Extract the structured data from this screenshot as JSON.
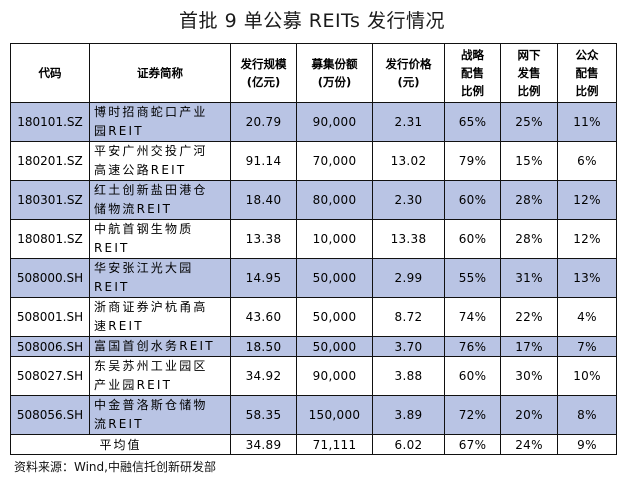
{
  "title": "首批 9 单公募 REITs 发行情况",
  "headers": [
    [
      "代码"
    ],
    [
      "证券简称"
    ],
    [
      "发行规模",
      "(亿元)"
    ],
    [
      "募集份额",
      "(万份)"
    ],
    [
      "发行价格",
      "(元)"
    ],
    [
      "战略",
      "配售",
      "比例"
    ],
    [
      "网下",
      "发售",
      "比例"
    ],
    [
      "公众",
      "配售",
      "比例"
    ]
  ],
  "rows": [
    {
      "code": "180101.SZ",
      "name": [
        "博时招商蛇口产业",
        "园REIT"
      ],
      "scale": "20.79",
      "shares": "90,000",
      "price": "2.31",
      "strategic": "65%",
      "offline": "25%",
      "public": "11%"
    },
    {
      "code": "180201.SZ",
      "name": [
        "平安广州交投广河",
        "高速公路REIT"
      ],
      "scale": "91.14",
      "shares": "70,000",
      "price": "13.02",
      "strategic": "79%",
      "offline": "15%",
      "public": "6%"
    },
    {
      "code": "180301.SZ",
      "name": [
        "红土创新盐田港仓",
        "储物流REIT"
      ],
      "scale": "18.40",
      "shares": "80,000",
      "price": "2.30",
      "strategic": "60%",
      "offline": "28%",
      "public": "12%"
    },
    {
      "code": "180801.SZ",
      "name": [
        "中航首钢生物质",
        "REIT"
      ],
      "scale": "13.38",
      "shares": "10,000",
      "price": "13.38",
      "strategic": "60%",
      "offline": "28%",
      "public": "12%"
    },
    {
      "code": "508000.SH",
      "name": [
        "华安张江光大园",
        "REIT"
      ],
      "scale": "14.95",
      "shares": "50,000",
      "price": "2.99",
      "strategic": "55%",
      "offline": "31%",
      "public": "13%"
    },
    {
      "code": "508001.SH",
      "name": [
        "浙商证券沪杭甬高",
        "速REIT"
      ],
      "scale": "43.60",
      "shares": "50,000",
      "price": "8.72",
      "strategic": "74%",
      "offline": "22%",
      "public": "4%"
    },
    {
      "code": "508006.SH",
      "name": [
        "富国首创水务REIT"
      ],
      "scale": "18.50",
      "shares": "50,000",
      "price": "3.70",
      "strategic": "76%",
      "offline": "17%",
      "public": "7%"
    },
    {
      "code": "508027.SH",
      "name": [
        "东吴苏州工业园区",
        "产业园REIT"
      ],
      "scale": "34.92",
      "shares": "90,000",
      "price": "3.88",
      "strategic": "60%",
      "offline": "30%",
      "public": "10%"
    },
    {
      "code": "508056.SH",
      "name": [
        "中金普洛斯仓储物",
        "流REIT"
      ],
      "scale": "58.35",
      "shares": "150,000",
      "price": "3.89",
      "strategic": "72%",
      "offline": "20%",
      "public": "8%"
    }
  ],
  "average": {
    "label": "平均值",
    "scale": "34.89",
    "shares": "71,111",
    "price": "6.02",
    "strategic": "67%",
    "offline": "24%",
    "public": "9%"
  },
  "source": "资料来源：Wind,中融信托创新研发部",
  "colors": {
    "alt_row": "#b9c4e4",
    "border": "#111111"
  }
}
